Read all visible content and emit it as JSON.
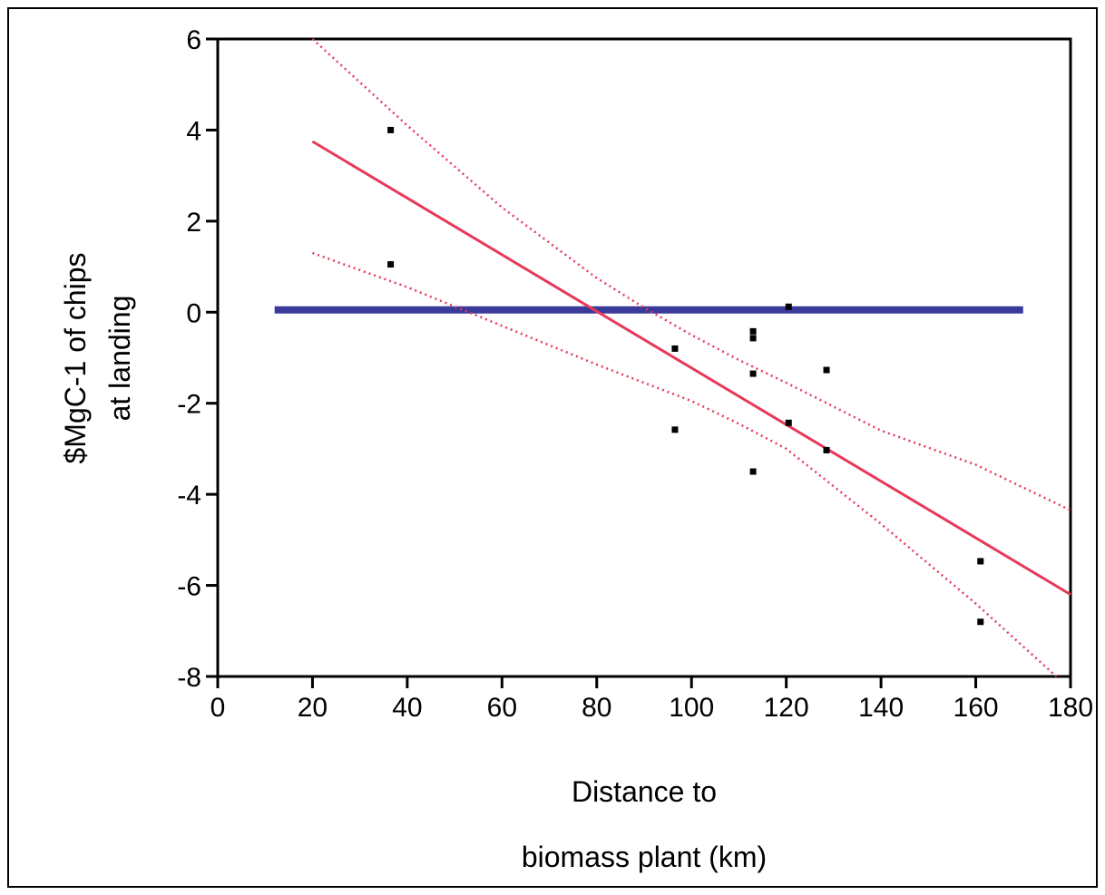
{
  "chart_data": {
    "type": "scatter",
    "title": "",
    "xlabel_lines": [
      "Distance to",
      "biomass plant (km)"
    ],
    "ylabel_lines": [
      "$MgC-1 of chips",
      "at landing"
    ],
    "xlim": [
      0,
      180
    ],
    "ylim": [
      -8,
      6
    ],
    "xticks": [
      0,
      20,
      40,
      60,
      80,
      100,
      120,
      140,
      160,
      180
    ],
    "yticks": [
      -8,
      -6,
      -4,
      -2,
      0,
      2,
      4,
      6
    ],
    "grid": false,
    "points": [
      {
        "x": 36.5,
        "y": 4.0
      },
      {
        "x": 36.5,
        "y": 1.05
      },
      {
        "x": 96.5,
        "y": -0.8
      },
      {
        "x": 96.5,
        "y": -2.58
      },
      {
        "x": 113,
        "y": -0.42
      },
      {
        "x": 113,
        "y": -0.57
      },
      {
        "x": 113,
        "y": -1.35
      },
      {
        "x": 113,
        "y": -3.5
      },
      {
        "x": 120.5,
        "y": 0.12
      },
      {
        "x": 120.5,
        "y": -2.43
      },
      {
        "x": 128.5,
        "y": -1.27
      },
      {
        "x": 128.5,
        "y": -3.03
      },
      {
        "x": 161,
        "y": -5.47
      },
      {
        "x": 161,
        "y": -6.8
      }
    ],
    "fit_line": {
      "x": [
        20,
        180
      ],
      "y": [
        3.75,
        -6.2
      ],
      "color": "#e8385a"
    },
    "confidence_upper": {
      "x": [
        20,
        40,
        60,
        80,
        90,
        100,
        110,
        120,
        140,
        160,
        180
      ],
      "y": [
        6.0,
        4.1,
        2.3,
        0.75,
        0.1,
        -0.5,
        -1.05,
        -1.55,
        -2.6,
        -3.35,
        -4.35
      ],
      "color": "#e8385a"
    },
    "confidence_lower": {
      "x": [
        20,
        40,
        60,
        80,
        100,
        110,
        120,
        140,
        160,
        177
      ],
      "y": [
        1.3,
        0.55,
        -0.3,
        -1.15,
        -1.95,
        -2.45,
        -3.0,
        -4.65,
        -6.4,
        -8.0
      ],
      "color": "#e8385a"
    },
    "reference_line": {
      "x": [
        12,
        170
      ],
      "y": [
        0.05,
        0.05
      ],
      "color": "#3a3a9a"
    }
  }
}
